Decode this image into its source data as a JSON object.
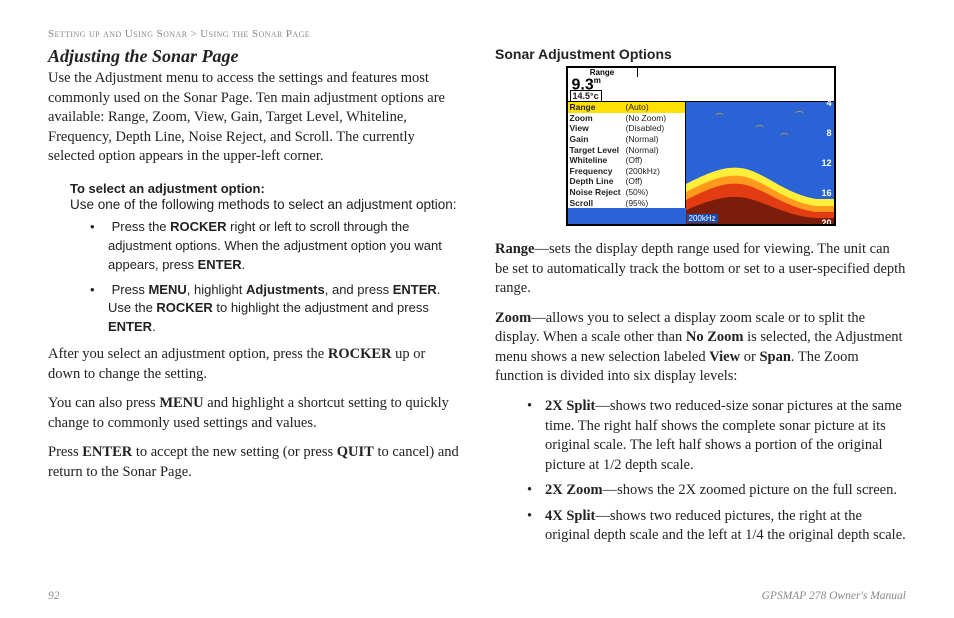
{
  "crumb": {
    "left": "Setting up and Using Sonar",
    "sep": ">",
    "right": "Using the Sonar Page"
  },
  "left": {
    "title": "Adjusting the Sonar Page",
    "intro": "Use the Adjustment menu to access the settings and features most commonly used on the Sonar Page. Ten main adjustment options are available: Range, Zoom, View, Gain, Target Level, Whiteline, Frequency, Depth Line, Noise Reject, and Scroll. The currently selected option appears in the upper-left corner.",
    "instrTitle": "To select an adjustment option:",
    "instrLead": "Use one of the following methods to select an adjustment option:",
    "bullet1a": "Press the ",
    "bullet1b": "ROCKER",
    "bullet1c": " right or left to scroll through the adjustment options. When the adjustment option you want appears, press ",
    "bullet1d": "ENTER",
    "bullet1e": ".",
    "bullet2a": "Press ",
    "bullet2b": "MENU",
    "bullet2c": ", highlight ",
    "bullet2d": "Adjustments",
    "bullet2e": ", and press ",
    "bullet2f": "ENTER",
    "bullet2g": ". Use the ",
    "bullet2h": "ROCKER",
    "bullet2i": " to highlight the adjustment and press ",
    "bullet2j": "ENTER",
    "bullet2k": ".",
    "p2a": "After you select an adjustment option, press the ",
    "p2b": "ROCKER",
    "p2c": " up or down to change the setting.",
    "p3a": "You can also press ",
    "p3b": "MENU",
    "p3c": " and highlight a shortcut setting to quickly change to commonly used settings and values.",
    "p4a": "Press ",
    "p4b": "ENTER",
    "p4c": " to accept the new setting (or press ",
    "p4d": "QUIT",
    "p4e": " to cancel) and return to the Sonar Page."
  },
  "right": {
    "title": "Sonar Adjustment Options",
    "range_a": "Range",
    "range_b": "—sets the display depth range used for viewing. The unit can be set to automatically track the bottom or set to a user-specified depth range.",
    "zoom_a": "Zoom",
    "zoom_b": "—allows you to select a display zoom scale or to split the display. When a scale other than ",
    "zoom_c": "No Zoom",
    "zoom_d": " is selected, the Adjustment menu shows a new selection labeled ",
    "zoom_e": "View",
    "zoom_f": " or ",
    "zoom_g": "Span",
    "zoom_h": ". The Zoom function is divided into six display levels:",
    "z1a": "2X Split",
    "z1b": "—shows two reduced-size sonar pictures at the same time. The right half shows the complete sonar picture at its original scale. The left half shows a portion of the original picture at 1/2 depth scale.",
    "z2a": "2X Zoom",
    "z2b": "—shows the 2X zoomed picture on the full screen.",
    "z3a": "4X Split",
    "z3b": "—shows two reduced pictures, the right at the original depth scale and the left at 1/4 the original depth scale."
  },
  "sonar": {
    "rangeLabel": "Range",
    "depth": "9.3",
    "depthUnit": "m",
    "temp": "14.5°c",
    "menu": [
      {
        "k": "Range",
        "v": "(Auto)",
        "sel": true
      },
      {
        "k": "Zoom",
        "v": "(No Zoom)"
      },
      {
        "k": "View",
        "v": "(Disabled)"
      },
      {
        "k": "Gain",
        "v": "(Normal)"
      },
      {
        "k": "Target Level",
        "v": "(Normal)"
      },
      {
        "k": "Whiteline",
        "v": "(Off)"
      },
      {
        "k": "Frequency",
        "v": "(200kHz)"
      },
      {
        "k": "Depth Line",
        "v": "(Off)"
      },
      {
        "k": "Noise Reject",
        "v": "(50%)"
      },
      {
        "k": "Scroll",
        "v": "(95%)"
      }
    ],
    "ticks": [
      "0",
      "4",
      "8",
      "12",
      "16",
      "20"
    ],
    "khz": "200kHz",
    "colors": {
      "water": "#2a63d6",
      "sel": "#ffe000",
      "band1": "#ffef3a",
      "band2": "#ff9a1f",
      "band3": "#e33b12",
      "band4": "#7a1d0a"
    }
  },
  "footer": {
    "page": "92",
    "manual": "GPSMAP 278 Owner's Manual"
  }
}
